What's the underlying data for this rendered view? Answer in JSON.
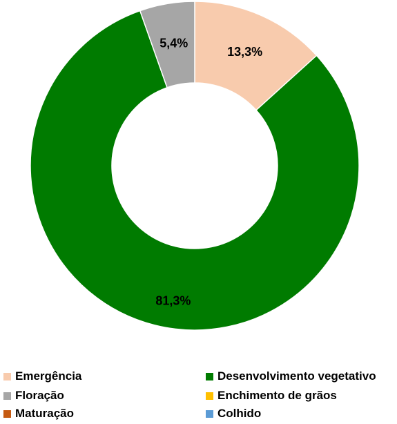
{
  "chart_data": {
    "type": "pie",
    "variant": "donut",
    "categories": [
      "Emergência",
      "Desenvolvimento vegetativo",
      "Floração",
      "Enchimento de grãos",
      "Maturação",
      "Colhido"
    ],
    "values": [
      13.3,
      81.3,
      5.4,
      0,
      0,
      0
    ],
    "value_labels": [
      "13,3%",
      "81,3%",
      "5,4%",
      "",
      "",
      ""
    ],
    "colors": [
      "#f8cbad",
      "#007b00",
      "#a6a6a6",
      "#ffc000",
      "#c55a11",
      "#5b9bd5"
    ],
    "legend_position": "bottom"
  },
  "legend": [
    {
      "label": "Emergência",
      "color": "#f8cbad"
    },
    {
      "label": "Desenvolvimento vegetativo",
      "color": "#007b00"
    },
    {
      "label": "Floração",
      "color": "#a6a6a6"
    },
    {
      "label": "Enchimento de grãos",
      "color": "#ffc000"
    },
    {
      "label": "Maturação",
      "color": "#c55a11"
    },
    {
      "label": "Colhido",
      "color": "#5b9bd5"
    }
  ]
}
